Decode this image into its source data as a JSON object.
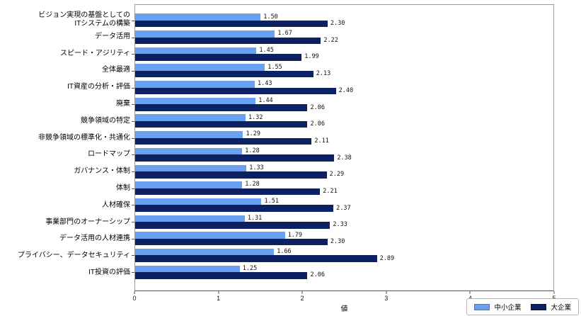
{
  "chart_data": {
    "type": "bar",
    "orientation": "horizontal",
    "title": "",
    "xlabel": "値",
    "xlim": [
      0,
      5
    ],
    "xticks": [
      "0",
      "1",
      "2",
      "3",
      "4",
      "5"
    ],
    "grid": false,
    "legend_position": "bottom-right",
    "categories": [
      "ビジョン実現の基盤としての\nITシステムの構築",
      "データ活用",
      "スピード・アジリティ",
      "全体最適",
      "IT資産の分析・評価",
      "廃棄",
      "競争領域の特定",
      "非競争領域の標準化・共通化",
      "ロードマップ",
      "ガバナンス・体制",
      "体制",
      "人材確保",
      "事業部門のオーナーシップ",
      "データ活用の人材連携",
      "プライバシー、データセキュリティ",
      "IT投資の評価"
    ],
    "series": [
      {
        "name": "中小企業",
        "color": "#69a0f0",
        "values": [
          1.5,
          1.67,
          1.45,
          1.55,
          1.43,
          1.44,
          1.32,
          1.29,
          1.28,
          1.33,
          1.28,
          1.51,
          1.31,
          1.79,
          1.66,
          1.25
        ]
      },
      {
        "name": "大企業",
        "color": "#0b2161",
        "values": [
          2.3,
          2.22,
          1.99,
          2.13,
          2.4,
          2.06,
          2.06,
          2.11,
          2.38,
          2.29,
          2.21,
          2.37,
          2.33,
          2.3,
          2.89,
          2.06
        ]
      }
    ],
    "colors": {
      "sme_bar": "#69a0f0",
      "large_bar": "#0b2161",
      "frame": "#9a9a9a",
      "axis": "#555555"
    }
  }
}
